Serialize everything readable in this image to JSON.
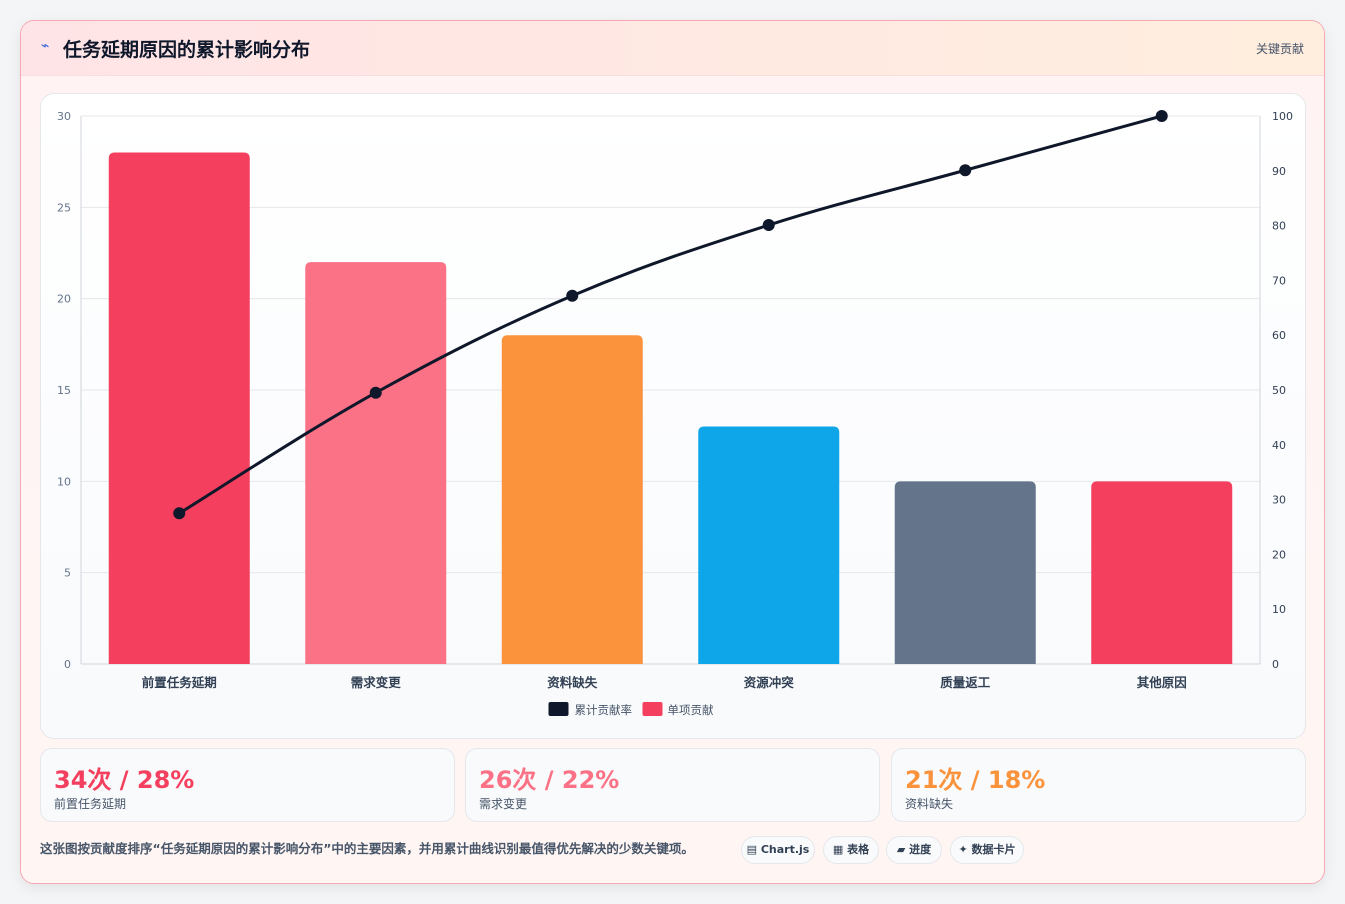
{
  "header": {
    "icon": "lightning-icon",
    "title": "任务延期原因的累计影响分布",
    "tag": "关键贡献"
  },
  "chart_data": {
    "type": "bar",
    "categories": [
      "前置任务延期",
      "需求变更",
      "资料缺失",
      "资源冲突",
      "质量返工",
      "其他原因"
    ],
    "series": [
      {
        "name": "单项贡献",
        "type": "bar",
        "axis": "left",
        "values": [
          28,
          22,
          18,
          13,
          10,
          10
        ],
        "colors": [
          "#f43f5e",
          "#fb7185",
          "#fb923c",
          "#0ea5e9",
          "#64748b",
          "#f43f5e"
        ]
      },
      {
        "name": "累计贡献率",
        "type": "line",
        "axis": "right",
        "values": [
          27.5,
          49.5,
          67.2,
          80.1,
          90.1,
          100
        ],
        "color": "#0f172a"
      }
    ],
    "ylim_left": [
      0,
      30
    ],
    "yticks_left": [
      "0",
      "5",
      "10",
      "15",
      "20",
      "25",
      "30"
    ],
    "ylim_right": [
      0,
      100
    ],
    "yticks_right": [
      "0",
      "10",
      "20",
      "30",
      "40",
      "50",
      "60",
      "70",
      "80",
      "90",
      "100"
    ],
    "legend": [
      "累计贡献率",
      "单项贡献"
    ],
    "legend_position": "bottom",
    "grid": true
  },
  "stats": [
    {
      "value": "34次 / 28%",
      "label": "前置任务延期",
      "color": "#f43f5e"
    },
    {
      "value": "26次 / 22%",
      "label": "需求变更",
      "color": "#fb7185"
    },
    {
      "value": "21次 / 18%",
      "label": "资料缺失",
      "color": "#fb923c"
    }
  ],
  "footer": {
    "text": "这张图按贡献度排序“任务延期原因的累计影响分布”中的主要因素，并用累计曲线识别最值得优先解决的少数关键项。",
    "pills": [
      "▤ Chart.js",
      "▦ 表格",
      "▰ 进度",
      "✦ 数据卡片"
    ]
  }
}
